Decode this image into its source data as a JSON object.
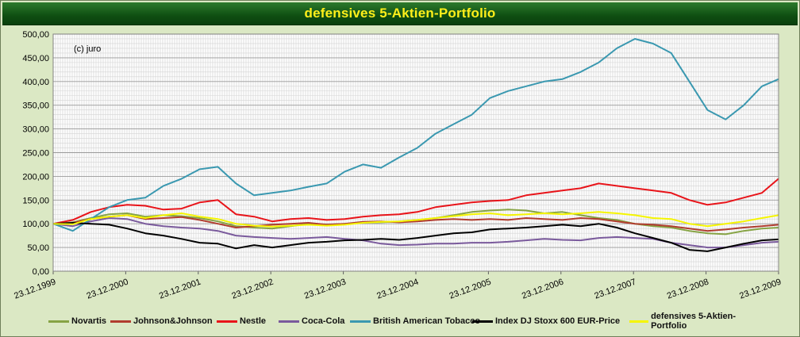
{
  "colors": {
    "Novartis": "#86a344",
    "Johnson&Johnson": "#b03c2e",
    "Nestle": "#e8141a",
    "Coca-Cola": "#7a5a9c",
    "British American Tobacco": "#3a98b0",
    "Index DJ Stoxx 600 EUR-Price": "#000000",
    "defensives 5-Aktien-Portfolio": "#f5f500"
  },
  "chart_data": {
    "type": "line",
    "title": "defensives 5-Aktien-Portfolio",
    "annotation": "(c) juro",
    "xlabel": "",
    "ylabel": "",
    "ylim": [
      0,
      500
    ],
    "y_ticks": [
      "0,00",
      "50,00",
      "100,00",
      "150,00",
      "200,00",
      "250,00",
      "300,00",
      "350,00",
      "400,00",
      "450,00",
      "500,00"
    ],
    "x_ticks": [
      "23.12.1999",
      "23.12.2000",
      "23.12.2001",
      "23.12.2002",
      "23.12.2003",
      "23.12.2004",
      "23.12.2005",
      "23.12.2006",
      "23.12.2007",
      "23.12.2008",
      "23.12.2009"
    ],
    "grid": true,
    "legend_position": "bottom",
    "x": [
      1999.98,
      2000.25,
      2000.5,
      2000.75,
      2001.0,
      2001.25,
      2001.5,
      2001.75,
      2002.0,
      2002.25,
      2002.5,
      2002.75,
      2003.0,
      2003.25,
      2003.5,
      2003.75,
      2004.0,
      2004.25,
      2004.5,
      2004.75,
      2005.0,
      2005.25,
      2005.5,
      2005.75,
      2006.0,
      2006.25,
      2006.5,
      2006.75,
      2007.0,
      2007.25,
      2007.5,
      2007.75,
      2008.0,
      2008.25,
      2008.5,
      2008.75,
      2009.0,
      2009.25,
      2009.5,
      2009.75,
      2009.98
    ],
    "series": [
      {
        "name": "Novartis",
        "values": [
          100,
          103,
          112,
          120,
          122,
          115,
          118,
          116,
          112,
          105,
          95,
          92,
          90,
          95,
          100,
          98,
          100,
          102,
          103,
          105,
          108,
          112,
          118,
          125,
          128,
          130,
          128,
          122,
          125,
          118,
          112,
          108,
          100,
          95,
          92,
          85,
          80,
          78,
          85,
          90,
          92
        ]
      },
      {
        "name": "Johnson&Johnson",
        "values": [
          100,
          102,
          110,
          115,
          118,
          110,
          112,
          114,
          108,
          100,
          92,
          95,
          98,
          100,
          102,
          98,
          100,
          104,
          105,
          103,
          105,
          108,
          110,
          108,
          110,
          108,
          112,
          110,
          108,
          112,
          110,
          105,
          100,
          98,
          95,
          90,
          85,
          88,
          92,
          95,
          98
        ]
      },
      {
        "name": "Nestle",
        "values": [
          100,
          108,
          125,
          135,
          140,
          138,
          130,
          132,
          145,
          150,
          120,
          115,
          105,
          110,
          112,
          108,
          110,
          115,
          118,
          120,
          125,
          135,
          140,
          145,
          148,
          150,
          160,
          165,
          170,
          175,
          185,
          180,
          175,
          170,
          165,
          150,
          140,
          145,
          155,
          165,
          195
        ]
      },
      {
        "name": "Coca-Cola",
        "values": [
          100,
          95,
          105,
          112,
          110,
          100,
          95,
          92,
          90,
          85,
          75,
          72,
          70,
          68,
          70,
          72,
          68,
          65,
          58,
          55,
          56,
          58,
          58,
          60,
          60,
          62,
          65,
          68,
          66,
          65,
          70,
          72,
          70,
          68,
          60,
          55,
          50,
          50,
          55,
          60,
          62
        ]
      },
      {
        "name": "British American Tobacco",
        "values": [
          100,
          85,
          110,
          135,
          150,
          155,
          180,
          195,
          215,
          220,
          185,
          160,
          165,
          170,
          178,
          185,
          210,
          225,
          218,
          240,
          260,
          290,
          310,
          330,
          365,
          380,
          390,
          400,
          405,
          420,
          440,
          470,
          490,
          480,
          460,
          400,
          340,
          320,
          350,
          390,
          405
        ]
      },
      {
        "name": "Index DJ Stoxx 600 EUR-Price",
        "values": [
          100,
          102,
          100,
          98,
          90,
          80,
          75,
          68,
          60,
          58,
          48,
          55,
          50,
          55,
          60,
          62,
          65,
          66,
          68,
          66,
          70,
          75,
          80,
          82,
          88,
          90,
          92,
          95,
          98,
          95,
          100,
          92,
          80,
          70,
          60,
          45,
          42,
          50,
          58,
          65,
          67
        ]
      },
      {
        "name": "defensives 5-Aktien-Portfolio",
        "values": [
          100,
          99,
          110,
          115,
          118,
          112,
          118,
          122,
          115,
          110,
          100,
          96,
          94,
          96,
          98,
          96,
          98,
          102,
          104,
          105,
          108,
          112,
          116,
          120,
          122,
          118,
          120,
          122,
          120,
          122,
          125,
          122,
          118,
          112,
          110,
          100,
          95,
          100,
          105,
          112,
          118
        ]
      }
    ]
  }
}
